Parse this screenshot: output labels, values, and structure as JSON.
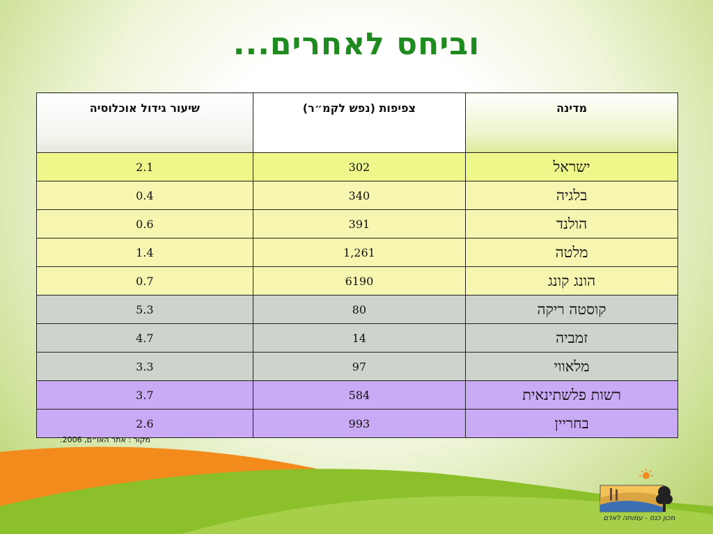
{
  "slide": {
    "title": "וביחס לאחרים...",
    "source": "מקור : אתר האו״ם, 2006.",
    "logo_text": "מכון כנס - עמותה לאדם"
  },
  "table": {
    "headers": {
      "country": "מדינה",
      "density": "צפיפות (נפש לקמ״ר)",
      "growth": "שיעור גידול אוכלוסיה"
    },
    "rows": [
      {
        "group": "israel",
        "country": "ישראל",
        "density": "302",
        "growth": "2.1"
      },
      {
        "group": "europe",
        "country": "בלגיה",
        "density": "340",
        "growth": "0.4"
      },
      {
        "group": "europe",
        "country": "הולנד",
        "density": "391",
        "growth": "0.6"
      },
      {
        "group": "europe",
        "country": "מלטה",
        "density": "1,261",
        "growth": "1.4"
      },
      {
        "group": "europe",
        "country": "הונג קונג",
        "density": "6190",
        "growth": "0.7"
      },
      {
        "group": "other",
        "country": "קוסטה ריקה",
        "density": "80",
        "growth": "5.3"
      },
      {
        "group": "other",
        "country": "זמביה",
        "density": "14",
        "growth": "4.7"
      },
      {
        "group": "other",
        "country": "מלאווי",
        "density": "97",
        "growth": "3.3"
      },
      {
        "group": "pal",
        "country": "רשות פלשתינאית",
        "density": "584",
        "growth": "3.7"
      },
      {
        "group": "pal",
        "country": "בחריין",
        "density": "993",
        "growth": "2.6"
      }
    ]
  },
  "colors": {
    "title": "#1f8a1f",
    "israel_row": "#eef88a",
    "europe_rows": "#f7f6b0",
    "other_rows": "#cdd4cc",
    "pal_rows": "#c9aaf5",
    "wave_orange": "#f28a1c",
    "wave_green": "#8cc02a"
  }
}
